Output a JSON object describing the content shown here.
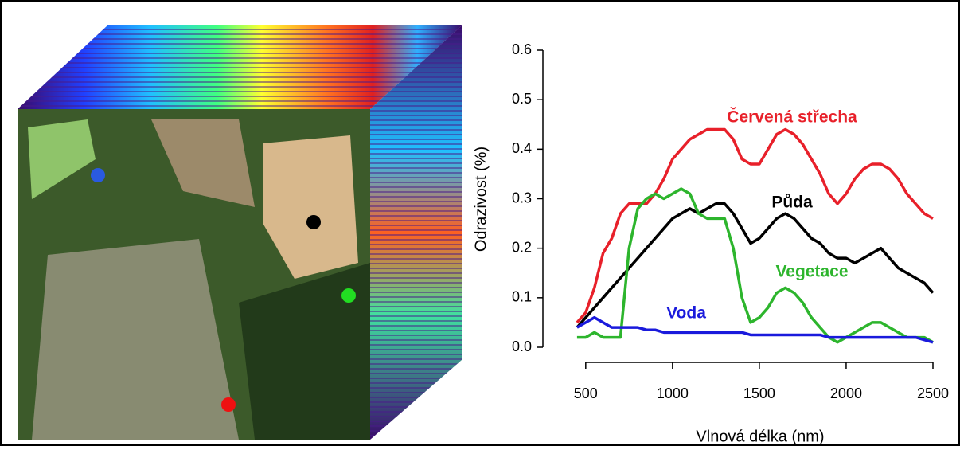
{
  "chart_data": {
    "type": "line",
    "x_label": "Vlnová délka (nm)",
    "y_label": "Odrazivost (%)",
    "x": [
      450,
      500,
      550,
      600,
      650,
      700,
      750,
      800,
      850,
      900,
      950,
      1000,
      1050,
      1100,
      1150,
      1200,
      1250,
      1300,
      1350,
      1400,
      1450,
      1500,
      1550,
      1600,
      1650,
      1700,
      1750,
      1800,
      1850,
      1900,
      1950,
      2000,
      2050,
      2100,
      2150,
      2200,
      2250,
      2300,
      2350,
      2400,
      2450,
      2500
    ],
    "series": [
      {
        "name": "Červená střecha",
        "color": "#e8202a",
        "values": [
          0.05,
          0.07,
          0.12,
          0.19,
          0.22,
          0.27,
          0.29,
          0.29,
          0.29,
          0.31,
          0.34,
          0.38,
          0.4,
          0.42,
          0.43,
          0.44,
          0.44,
          0.44,
          0.42,
          0.38,
          0.37,
          0.37,
          0.4,
          0.43,
          0.44,
          0.43,
          0.41,
          0.38,
          0.35,
          0.31,
          0.29,
          0.31,
          0.34,
          0.36,
          0.37,
          0.37,
          0.36,
          0.34,
          0.31,
          0.29,
          0.27,
          0.26
        ]
      },
      {
        "name": "Půda",
        "color": "#000000",
        "values": [
          0.04,
          0.06,
          0.08,
          0.1,
          0.12,
          0.14,
          0.16,
          0.18,
          0.2,
          0.22,
          0.24,
          0.26,
          0.27,
          0.28,
          0.27,
          0.28,
          0.29,
          0.29,
          0.27,
          0.24,
          0.21,
          0.22,
          0.24,
          0.26,
          0.27,
          0.26,
          0.24,
          0.22,
          0.21,
          0.19,
          0.18,
          0.18,
          0.17,
          0.18,
          0.19,
          0.2,
          0.18,
          0.16,
          0.15,
          0.14,
          0.13,
          0.11
        ]
      },
      {
        "name": "Vegetace",
        "color": "#2db52d",
        "values": [
          0.02,
          0.02,
          0.03,
          0.02,
          0.02,
          0.02,
          0.2,
          0.28,
          0.3,
          0.31,
          0.3,
          0.31,
          0.32,
          0.31,
          0.27,
          0.26,
          0.26,
          0.26,
          0.2,
          0.1,
          0.05,
          0.06,
          0.08,
          0.11,
          0.12,
          0.11,
          0.09,
          0.06,
          0.04,
          0.02,
          0.01,
          0.02,
          0.03,
          0.04,
          0.05,
          0.05,
          0.04,
          0.03,
          0.02,
          0.02,
          0.02,
          0.01
        ]
      },
      {
        "name": "Voda",
        "color": "#1a1adc",
        "values": [
          0.04,
          0.05,
          0.06,
          0.05,
          0.04,
          0.04,
          0.04,
          0.04,
          0.035,
          0.035,
          0.03,
          0.03,
          0.03,
          0.03,
          0.03,
          0.03,
          0.03,
          0.03,
          0.03,
          0.03,
          0.025,
          0.025,
          0.025,
          0.025,
          0.025,
          0.025,
          0.025,
          0.025,
          0.025,
          0.02,
          0.02,
          0.02,
          0.02,
          0.02,
          0.02,
          0.02,
          0.02,
          0.02,
          0.02,
          0.02,
          0.015,
          0.01
        ]
      }
    ],
    "xlim": [
      400,
      2500
    ],
    "ylim": [
      0,
      0.6
    ],
    "xticks": [
      500,
      1000,
      1500,
      2000,
      2500
    ],
    "yticks": [
      {
        "value": 0,
        "label": "0.0"
      },
      0.1,
      0.2,
      0.3,
      0.4,
      0.5,
      0.6
    ]
  }
}
